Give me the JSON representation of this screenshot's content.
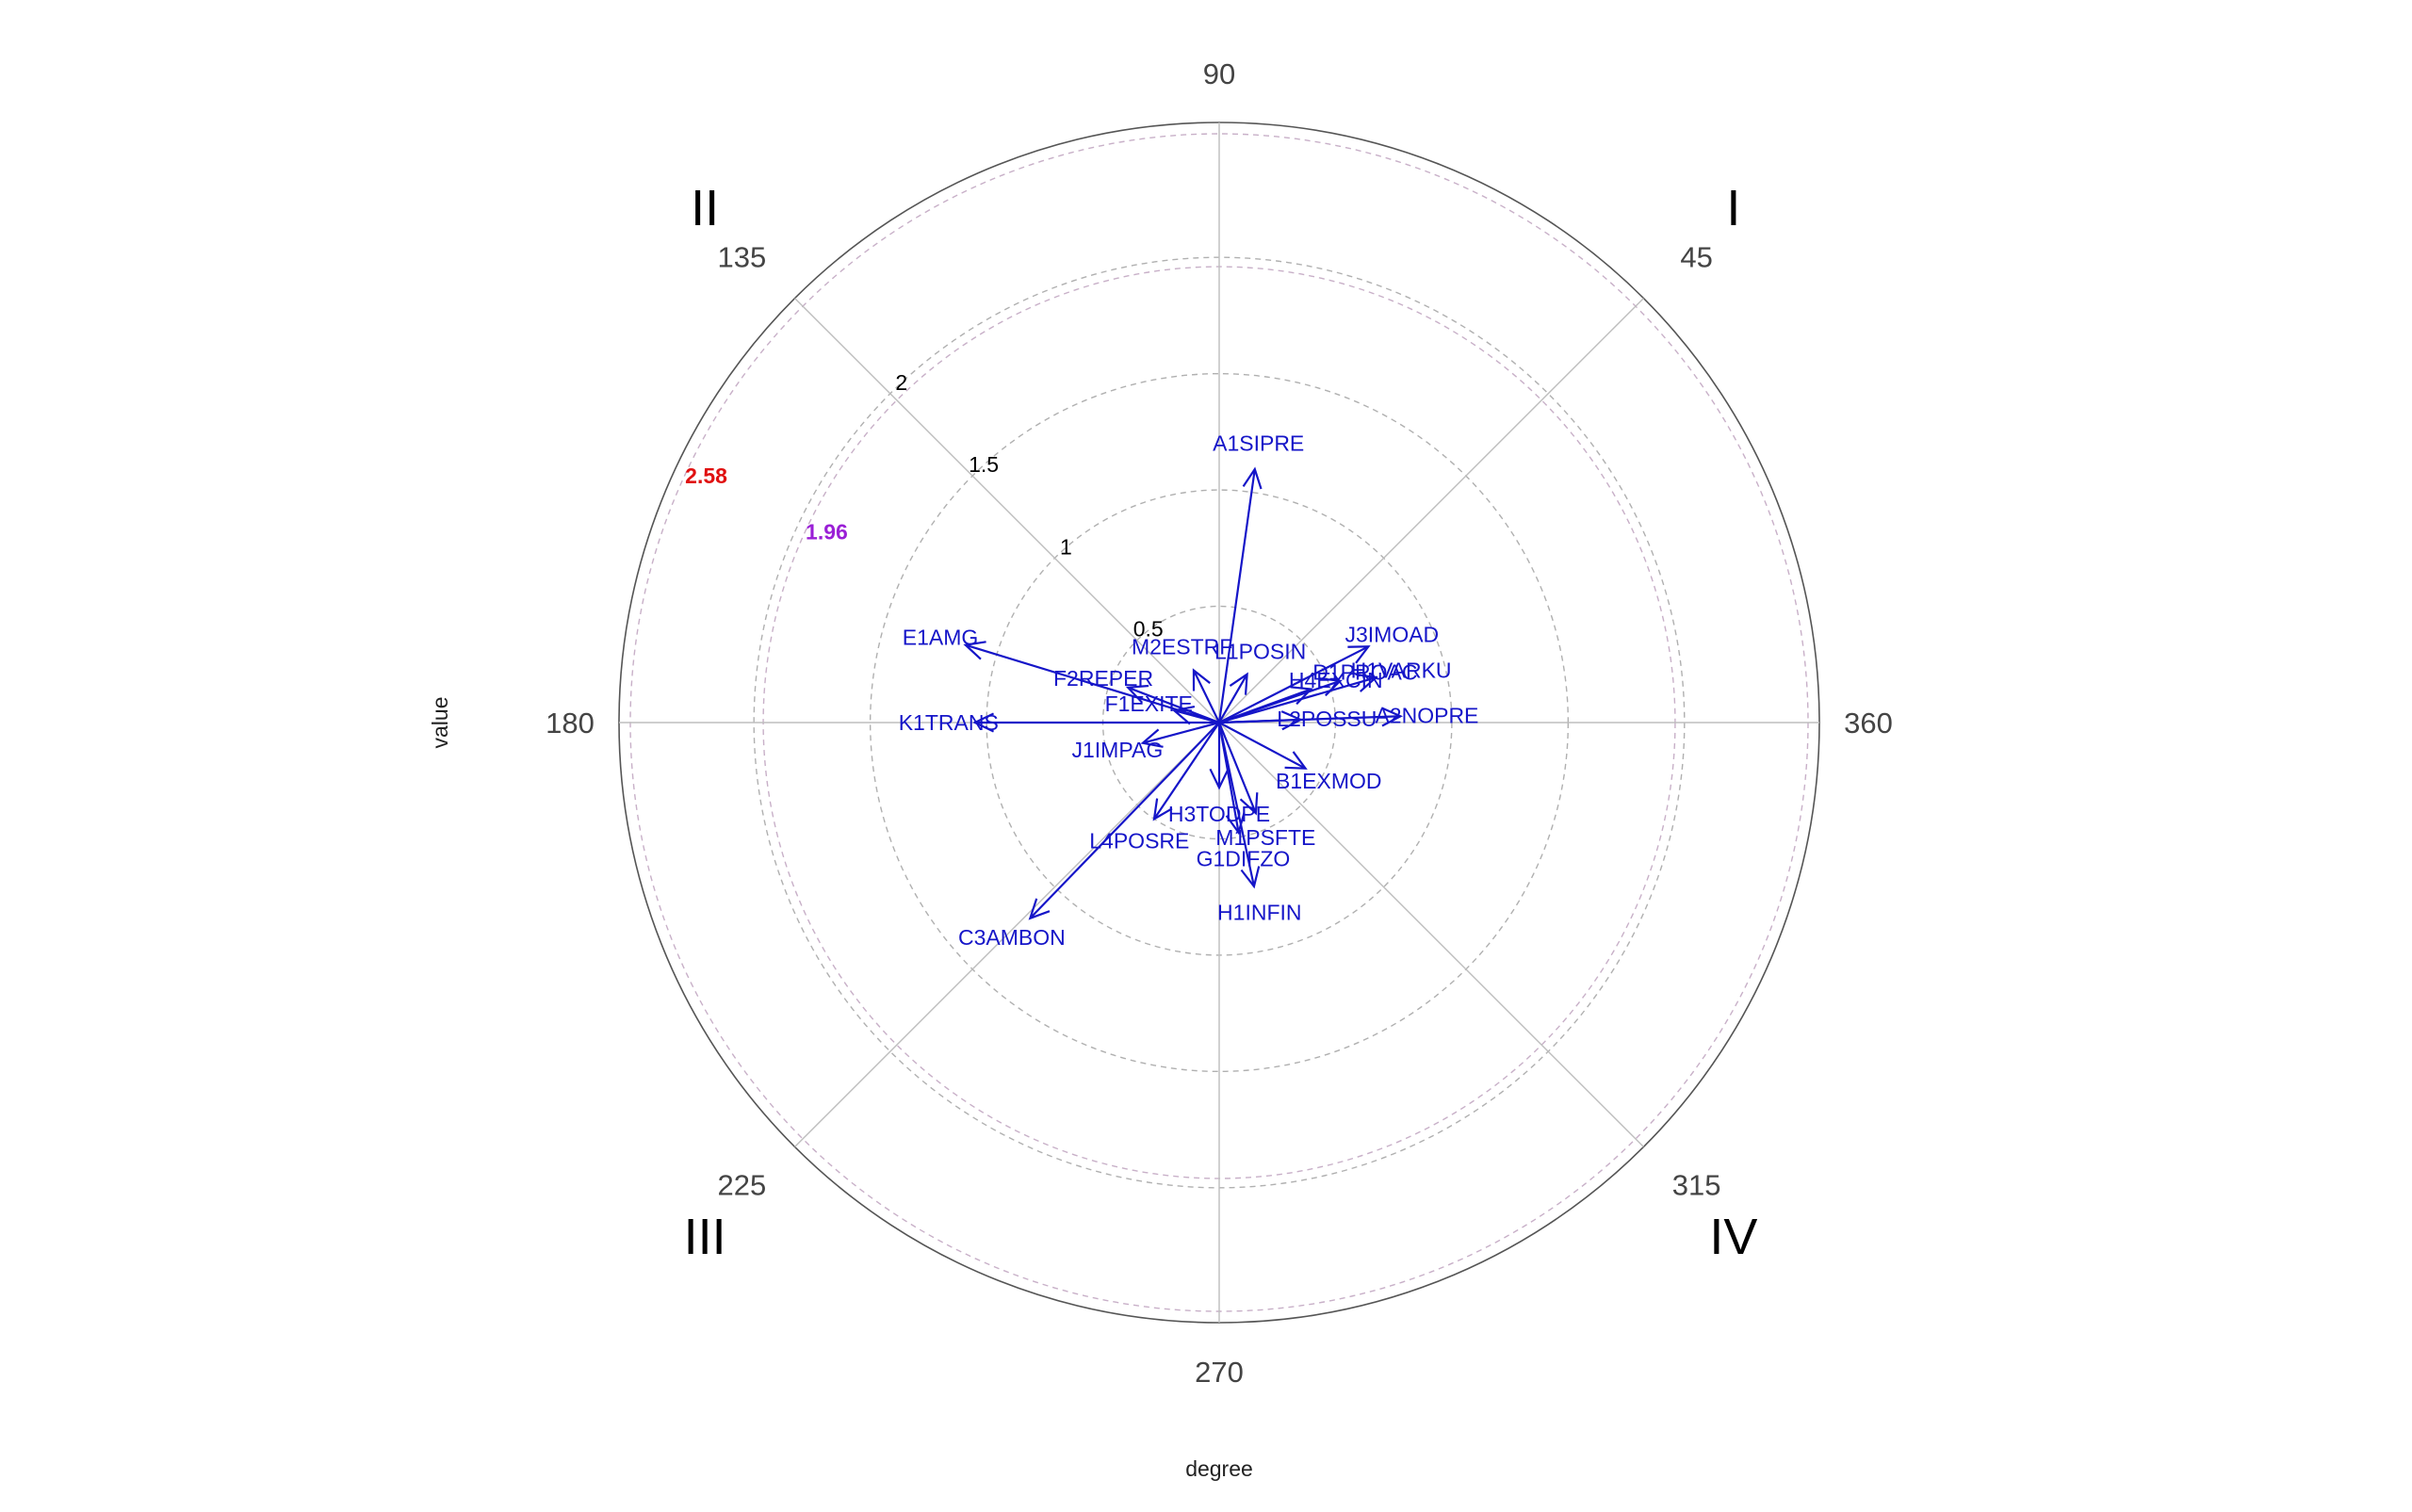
{
  "chart_data": {
    "type": "polar-vector",
    "xlabel": "degree",
    "ylabel": "value",
    "r_max": 2.58,
    "rings": [
      0.5,
      1,
      1.5,
      2
    ],
    "ring_labels": [
      "0.5",
      "1",
      "1.5",
      "2"
    ],
    "critical_rings": [
      {
        "value": 1.96,
        "label": "1.96",
        "color": "#9a1fd6"
      },
      {
        "value": 2.58,
        "label": "2.58",
        "color": "#e01010"
      }
    ],
    "degree_labels": [
      {
        "deg": 90,
        "label": "90"
      },
      {
        "deg": 45,
        "label": "45"
      },
      {
        "deg": 135,
        "label": "135"
      },
      {
        "deg": 180,
        "label": "180"
      },
      {
        "deg": 360,
        "label": "360"
      },
      {
        "deg": 225,
        "label": "225"
      },
      {
        "deg": 270,
        "label": "270"
      },
      {
        "deg": 315,
        "label": "315"
      }
    ],
    "quadrants": [
      {
        "label": "I",
        "deg": 45
      },
      {
        "label": "II",
        "deg": 135
      },
      {
        "label": "III",
        "deg": 225
      },
      {
        "label": "IV",
        "deg": 315
      }
    ],
    "vector_color": "#1515c8",
    "vectors": [
      {
        "name": "A1SIPRE",
        "angle": 82,
        "value": 1.1
      },
      {
        "name": "J3IMOAD",
        "angle": 27,
        "value": 0.72
      },
      {
        "name": "H1VARKU",
        "angle": 16,
        "value": 0.7
      },
      {
        "name": "D1PROAC",
        "angle": 19,
        "value": 0.55
      },
      {
        "name": "A2NOPRE",
        "angle": 2,
        "value": 0.78
      },
      {
        "name": "L2POSSU",
        "angle": 2,
        "value": 0.35
      },
      {
        "name": "H4EXCIN",
        "angle": 20,
        "value": 0.42
      },
      {
        "name": "L1POSIN",
        "angle": 60,
        "value": 0.24
      },
      {
        "name": "M2ESTRF",
        "angle": 116,
        "value": 0.25
      },
      {
        "name": "E1AMG",
        "angle": 163,
        "value": 1.14
      },
      {
        "name": "F2REPER",
        "angle": 159,
        "value": 0.42
      },
      {
        "name": "F1EXITE",
        "angle": 165,
        "value": 0.2
      },
      {
        "name": "K1TRANS",
        "angle": 180,
        "value": 1.05
      },
      {
        "name": "J1IMPAG",
        "angle": 195,
        "value": 0.34
      },
      {
        "name": "H3TODPE",
        "angle": 270,
        "value": 0.28
      },
      {
        "name": "B1EXMOD",
        "angle": 332,
        "value": 0.42
      },
      {
        "name": "M1PSFTE",
        "angle": 292,
        "value": 0.42
      },
      {
        "name": "G1DIFZO",
        "angle": 280,
        "value": 0.48
      },
      {
        "name": "H1INFIN",
        "angle": 282,
        "value": 0.72
      },
      {
        "name": "L4POSRE",
        "angle": 236,
        "value": 0.5
      },
      {
        "name": "C3AMBON",
        "angle": 226,
        "value": 1.17
      }
    ]
  }
}
